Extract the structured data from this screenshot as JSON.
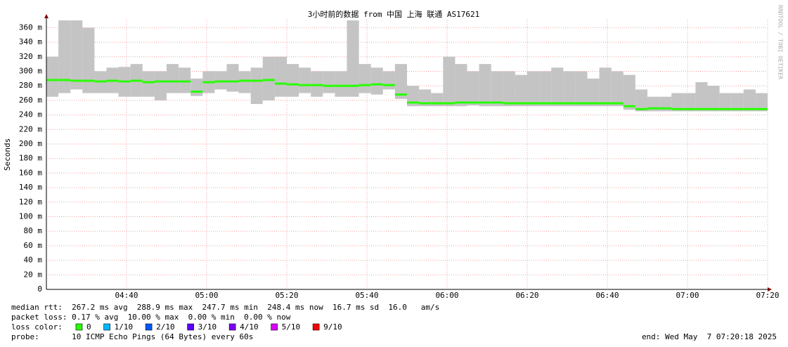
{
  "chart_data": {
    "type": "smokeping",
    "title": "3小时前的数据 from 中国 上海 联通 AS17621",
    "y_label": "Seconds",
    "watermark": "RRDTOOL / TOBI OETIKER",
    "xlim": [
      260,
      440
    ],
    "ylim": [
      0,
      371
    ],
    "xticks": [
      {
        "value": 280,
        "label": "04:40"
      },
      {
        "value": 300,
        "label": "05:00"
      },
      {
        "value": 320,
        "label": "05:20"
      },
      {
        "value": 340,
        "label": "05:40"
      },
      {
        "value": 360,
        "label": "06:00"
      },
      {
        "value": 380,
        "label": "06:20"
      },
      {
        "value": 400,
        "label": "06:40"
      },
      {
        "value": 420,
        "label": "07:00"
      },
      {
        "value": 440,
        "label": "07:20"
      }
    ],
    "yticks": [
      0,
      {
        "value": 20,
        "label": "20 m"
      },
      {
        "value": 40,
        "label": "40 m"
      },
      {
        "value": 60,
        "label": "60 m"
      },
      {
        "value": 80,
        "label": "80 m"
      },
      {
        "value": 100,
        "label": "100 m"
      },
      {
        "value": 120,
        "label": "120 m"
      },
      {
        "value": 140,
        "label": "140 m"
      },
      {
        "value": 160,
        "label": "160 m"
      },
      {
        "value": 180,
        "label": "180 m"
      },
      {
        "value": 200,
        "label": "200 m"
      },
      {
        "value": 220,
        "label": "220 m"
      },
      {
        "value": 240,
        "label": "240 m"
      },
      {
        "value": 260,
        "label": "260 m"
      },
      {
        "value": 280,
        "label": "280 m"
      },
      {
        "value": 300,
        "label": "300 m"
      },
      {
        "value": 320,
        "label": "320 m"
      },
      {
        "value": 340,
        "label": "340 m"
      },
      {
        "value": 360,
        "label": "360 m"
      }
    ],
    "grid": true,
    "smoke_color": "#c4c4c4",
    "x": [
      260,
      263,
      266,
      269,
      272,
      275,
      278,
      281,
      284,
      287,
      290,
      293,
      296,
      299,
      302,
      305,
      308,
      311,
      314,
      317,
      320,
      323,
      326,
      329,
      332,
      335,
      338,
      341,
      344,
      347,
      350,
      353,
      356,
      359,
      362,
      365,
      368,
      371,
      374,
      377,
      380,
      383,
      386,
      389,
      392,
      395,
      398,
      401,
      404,
      407,
      410,
      413,
      416,
      419,
      422,
      425,
      428,
      431,
      434,
      437
    ],
    "median": [
      288,
      288,
      287,
      287,
      286,
      287,
      286,
      287,
      285,
      286,
      286,
      286,
      272,
      285,
      286,
      286,
      287,
      287,
      288,
      283,
      282,
      281,
      281,
      280,
      280,
      280,
      281,
      282,
      281,
      268,
      257,
      256,
      256,
      256,
      257,
      257,
      257,
      257,
      256,
      256,
      256,
      256,
      256,
      256,
      256,
      256,
      256,
      256,
      252,
      248,
      249,
      249,
      248,
      248,
      248,
      248,
      248,
      248,
      248,
      248
    ],
    "smoke_low": [
      265,
      270,
      275,
      270,
      270,
      270,
      265,
      265,
      265,
      260,
      270,
      270,
      266,
      270,
      275,
      272,
      270,
      255,
      260,
      265,
      265,
      270,
      265,
      270,
      265,
      265,
      270,
      268,
      275,
      262,
      252,
      252,
      252,
      252,
      252,
      253,
      252,
      252,
      252,
      252,
      252,
      252,
      252,
      252,
      252,
      252,
      252,
      252,
      247,
      245,
      245,
      245,
      245,
      245,
      245,
      245,
      245,
      245,
      245,
      245
    ],
    "smoke_high": [
      320,
      370,
      370,
      360,
      300,
      305,
      306,
      310,
      300,
      300,
      310,
      305,
      290,
      300,
      300,
      310,
      300,
      305,
      320,
      320,
      310,
      305,
      300,
      300,
      300,
      370,
      310,
      305,
      300,
      310,
      280,
      275,
      270,
      320,
      310,
      300,
      310,
      300,
      300,
      295,
      300,
      300,
      305,
      300,
      300,
      290,
      305,
      300,
      295,
      275,
      265,
      265,
      270,
      270,
      285,
      280,
      270,
      270,
      275,
      270
    ],
    "stats": {
      "median_rtt": "median rtt:  267.2 ms avg  288.9 ms max  247.7 ms min  248.4 ms now  16.7 ms sd  16.0   am/s",
      "packet_loss": "packet loss: 0.17 % avg  10.00 % max  0.00 % min  0.00 % now",
      "loss_color": "loss color:",
      "probe": "probe:       10 ICMP Echo Pings (64 Bytes) every 60s",
      "end": "end: Wed May  7 07:20:18 2025"
    },
    "loss_colors": [
      {
        "label": "0",
        "color": "#26ff00"
      },
      {
        "label": "1/10",
        "color": "#00b8ff"
      },
      {
        "label": "2/10",
        "color": "#0059ff"
      },
      {
        "label": "3/10",
        "color": "#5e00ff"
      },
      {
        "label": "4/10",
        "color": "#7e00ff"
      },
      {
        "label": "5/10",
        "color": "#dd00ff"
      },
      {
        "label": "9/10",
        "color": "#ff0000"
      }
    ]
  }
}
